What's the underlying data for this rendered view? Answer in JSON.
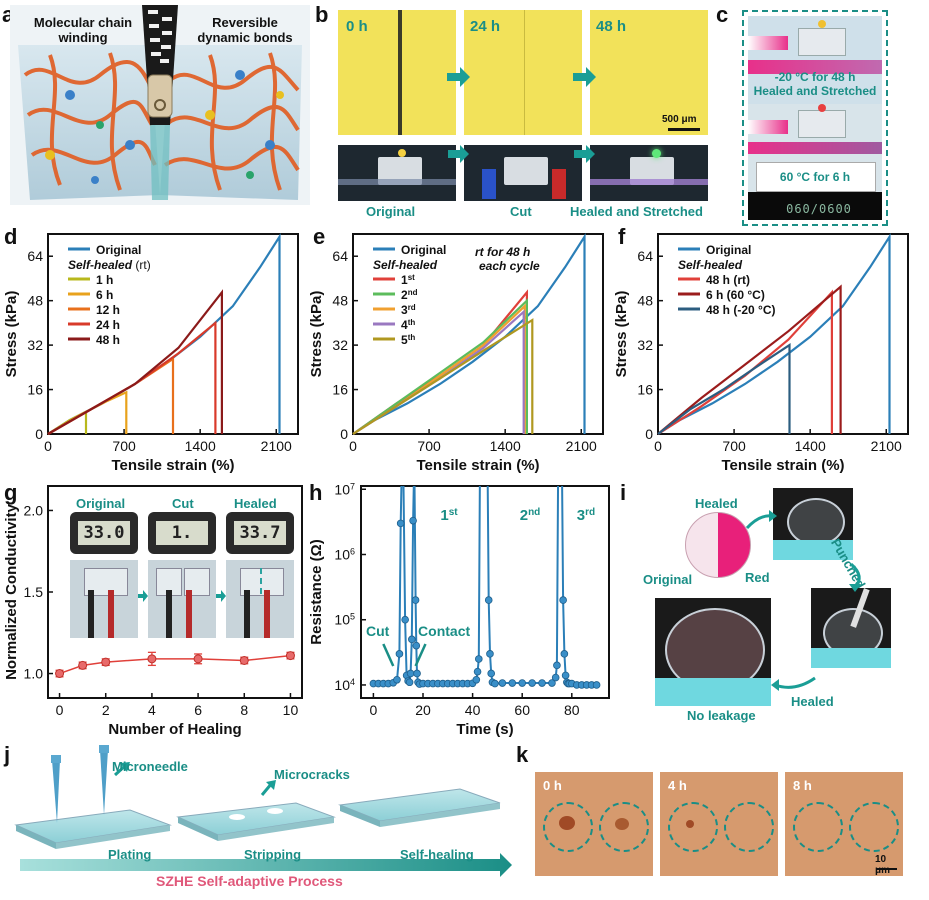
{
  "colors": {
    "teal": "#1a8e86",
    "blue": "#2b7fb8",
    "lime": "#b8b81c",
    "orange": "#e8891c",
    "red": "#e0403a",
    "darkred": "#8b1a1a",
    "green": "#5cbc5c",
    "gold": "#f0a030",
    "purple": "#9a78c0",
    "olive": "#b09820",
    "stripe": "#e03a6a"
  },
  "panel_a": {
    "letter": "a",
    "label_left": "Molecular chain winding",
    "label_right": "Reversible dynamic bonds"
  },
  "panel_b": {
    "letter": "b",
    "time_0": "0 h",
    "time_24": "24 h",
    "time_48": "48 h",
    "scale": "500 μm",
    "cap_original": "Original",
    "cap_cut": "Cut",
    "cap_healed": "Healed and Stretched"
  },
  "panel_c": {
    "letter": "c",
    "cap_top_1": "-20 °C for 48 h",
    "cap_top_2": "Healed and Stretched",
    "cap_bottom": "60 °C for 6 h",
    "meter_readout": "060/0600"
  },
  "panel_g_photo": {
    "cap_original": "Original",
    "cap_cut": "Cut",
    "cap_healed": "Healed",
    "read_original": "33.0",
    "read_cut": "1.",
    "read_healed": "33.7"
  },
  "panel_h_text": {
    "c1": "1",
    "c1sup": "st",
    "c2": "2",
    "c2sup": "nd",
    "c3": "3",
    "c3sup": "rd",
    "cut": "Cut",
    "contact": "Contact"
  },
  "panel_i": {
    "letter": "i",
    "healed": "Healed",
    "punched": "Punched",
    "original": "Original",
    "red": "Red",
    "no_leakage": "No leakage",
    "healed2": "Healed"
  },
  "panel_j": {
    "letter": "j",
    "microneedle": "Microneedle",
    "microcracks": "Microcracks",
    "plating": "Plating",
    "stripping": "Stripping",
    "selfhealing": "Self-healing",
    "process": "SZHE Self-adaptive Process"
  },
  "panel_k": {
    "letter": "k",
    "t0": "0 h",
    "t4": "4 h",
    "t8": "8 h",
    "scale": "10 μm"
  },
  "chart_data": [
    {
      "id": "d",
      "type": "line",
      "xlabel": "Tensile strain (%)",
      "ylabel": "Stress (kPa)",
      "xlim": [
        0,
        2300
      ],
      "ylim": [
        0,
        72
      ],
      "xticks": [
        0,
        700,
        1400,
        2100
      ],
      "yticks": [
        0,
        16,
        32,
        48,
        64
      ],
      "legend_title": "Self-healed",
      "legend_title_suffix": " (rt)",
      "series": [
        {
          "name": "Original",
          "color": "#2b7fb8",
          "x": [
            0,
            200,
            500,
            800,
            1100,
            1400,
            1700,
            1950,
            2130,
            2130
          ],
          "y": [
            0,
            5,
            11,
            18,
            26,
            35,
            46,
            60,
            71,
            0
          ]
        },
        {
          "name": "1 h",
          "color": "#b8b81c",
          "x": [
            0,
            200,
            350,
            350
          ],
          "y": [
            0,
            5,
            8,
            0
          ]
        },
        {
          "name": "6 h",
          "color": "#e8a21c",
          "x": [
            0,
            300,
            550,
            720,
            720
          ],
          "y": [
            0,
            7,
            12,
            15,
            0
          ]
        },
        {
          "name": "12 h",
          "color": "#e8701c",
          "x": [
            0,
            400,
            800,
            1150,
            1150
          ],
          "y": [
            0,
            9,
            18,
            27,
            0
          ]
        },
        {
          "name": "24 h",
          "color": "#d83a2a",
          "x": [
            0,
            400,
            800,
            1200,
            1540,
            1540
          ],
          "y": [
            0,
            9,
            18,
            29,
            40,
            0
          ]
        },
        {
          "name": "48 h",
          "color": "#8b1a1a",
          "x": [
            0,
            400,
            800,
            1200,
            1600,
            1600
          ],
          "y": [
            0,
            9,
            18,
            31,
            51,
            0
          ]
        }
      ]
    },
    {
      "id": "e",
      "type": "line",
      "xlabel": "Tensile strain (%)",
      "ylabel": "Stress (kPa)",
      "xlim": [
        0,
        2300
      ],
      "ylim": [
        0,
        72
      ],
      "xticks": [
        0,
        700,
        1400,
        2100
      ],
      "yticks": [
        0,
        16,
        32,
        48,
        64
      ],
      "legend_title": "Self-healed",
      "annotation_1": "rt for 48 h",
      "annotation_2": "each cycle",
      "series": [
        {
          "name": "Original",
          "color": "#2b7fb8",
          "x": [
            0,
            200,
            500,
            800,
            1100,
            1400,
            1700,
            1950,
            2130,
            2130
          ],
          "y": [
            0,
            5,
            11,
            18,
            26,
            35,
            46,
            60,
            71,
            0
          ]
        },
        {
          "name": "1",
          "sup": "st",
          "color": "#e0403a",
          "x": [
            0,
            400,
            800,
            1200,
            1600,
            1600
          ],
          "y": [
            0,
            11,
            21,
            32,
            51,
            0
          ]
        },
        {
          "name": "2",
          "sup": "nd",
          "color": "#5cbc5c",
          "x": [
            0,
            400,
            800,
            1200,
            1600,
            1600
          ],
          "y": [
            0,
            11,
            22,
            33,
            48,
            0
          ]
        },
        {
          "name": "3",
          "sup": "rd",
          "color": "#f0a030",
          "x": [
            0,
            400,
            800,
            1200,
            1580,
            1580
          ],
          "y": [
            0,
            10,
            21,
            32,
            46,
            0
          ]
        },
        {
          "name": "4",
          "sup": "th",
          "color": "#9a78c0",
          "x": [
            0,
            400,
            800,
            1200,
            1570,
            1570
          ],
          "y": [
            0,
            10,
            20,
            31,
            44,
            0
          ]
        },
        {
          "name": "5",
          "sup": "th",
          "color": "#b09820",
          "x": [
            0,
            400,
            800,
            1200,
            1650,
            1650
          ],
          "y": [
            0,
            10,
            20,
            30,
            41,
            0
          ]
        }
      ]
    },
    {
      "id": "f",
      "type": "line",
      "xlabel": "Tensile strain (%)",
      "ylabel": "Stress (kPa)",
      "xlim": [
        0,
        2300
      ],
      "ylim": [
        0,
        72
      ],
      "xticks": [
        0,
        700,
        1400,
        2100
      ],
      "yticks": [
        0,
        16,
        32,
        48,
        64
      ],
      "legend_title": "Self-healed",
      "series": [
        {
          "name": "Original",
          "color": "#2b7fb8",
          "x": [
            0,
            200,
            500,
            800,
            1100,
            1400,
            1700,
            1950,
            2130,
            2130
          ],
          "y": [
            0,
            5,
            11,
            18,
            26,
            35,
            46,
            60,
            71,
            0
          ]
        },
        {
          "name": "48 h (rt)",
          "color": "#e0403a",
          "x": [
            0,
            400,
            800,
            1200,
            1600,
            1600
          ],
          "y": [
            0,
            10,
            21,
            34,
            51,
            0
          ]
        },
        {
          "name": "6 h (60 °C)",
          "color": "#9b1c1c",
          "x": [
            0,
            400,
            800,
            1200,
            1680,
            1680
          ],
          "y": [
            0,
            13,
            25,
            37,
            53,
            0
          ]
        },
        {
          "name": "48 h (-20 °C)",
          "color": "#2c5d80",
          "x": [
            0,
            300,
            600,
            900,
            1210,
            1210
          ],
          "y": [
            0,
            9,
            16,
            24,
            32,
            0
          ]
        }
      ]
    },
    {
      "id": "g",
      "type": "line",
      "xlabel": "Number of Healing",
      "ylabel": "Normalized Conductivity",
      "xlim": [
        -0.5,
        10.5
      ],
      "ylim": [
        0.85,
        2.15
      ],
      "xticks": [
        0,
        2,
        4,
        6,
        8,
        10
      ],
      "yticks": [
        1.0,
        1.5,
        2.0
      ],
      "series": [
        {
          "color": "#e0403a",
          "x": [
            0,
            1,
            2,
            4,
            6,
            8,
            10
          ],
          "y": [
            1.0,
            1.05,
            1.07,
            1.09,
            1.09,
            1.08,
            1.11
          ],
          "err": [
            0.02,
            0.02,
            0.02,
            0.04,
            0.03,
            0.02,
            0.02
          ]
        }
      ]
    },
    {
      "id": "h",
      "type": "line",
      "xlabel": "Time (s)",
      "ylabel": "Resistance (Ω)",
      "xlim": [
        -5,
        95
      ],
      "ylim_log10": [
        3.8,
        7.05
      ],
      "xticks": [
        0,
        20,
        40,
        60,
        80
      ],
      "ytick_exps": [
        4,
        5,
        6,
        7
      ],
      "series": [
        {
          "color": "#2b7fb8",
          "x": [
            0,
            2,
            4,
            6,
            8,
            9.5,
            10.5,
            11,
            11.5,
            12,
            12.8,
            13.4,
            14,
            14.6,
            15,
            15.5,
            16,
            16.5,
            17,
            17.3,
            17.6,
            18,
            18.6,
            20,
            22,
            24,
            26,
            28,
            30,
            32,
            34,
            36,
            38,
            40,
            41.5,
            42,
            42.5,
            43,
            43.5,
            44,
            44.5,
            45,
            45.5,
            46,
            46.5,
            47,
            47.5,
            48,
            49,
            52,
            56,
            60,
            64,
            68,
            72,
            73.5,
            74,
            74.5,
            75,
            75.5,
            76,
            76.5,
            77,
            77.5,
            78,
            78.5,
            79,
            80,
            82,
            84,
            86,
            88,
            90
          ],
          "y": [
            10500,
            10500,
            10500,
            10500,
            10800,
            12000,
            30000,
            3000000,
            50000000,
            50000000,
            100000,
            14000,
            11500,
            11000,
            15000,
            50000,
            3300000,
            50000000,
            200000,
            40000,
            15000,
            11000,
            10300,
            10500,
            10500,
            10500,
            10500,
            10500,
            10500,
            10500,
            10500,
            10500,
            10500,
            10600,
            12000,
            16000,
            25000,
            50000000,
            50000000,
            50000000,
            50000000,
            50000000,
            50000000,
            50000000,
            200000,
            30000,
            15000,
            11000,
            10500,
            10700,
            10700,
            10700,
            10700,
            10700,
            10700,
            13000,
            20000,
            50000000,
            50000000,
            50000000,
            50000000,
            200000,
            30000,
            14000,
            11000,
            10500,
            10500,
            10500,
            10000,
            10000,
            10000,
            10000,
            10000
          ]
        }
      ]
    }
  ]
}
